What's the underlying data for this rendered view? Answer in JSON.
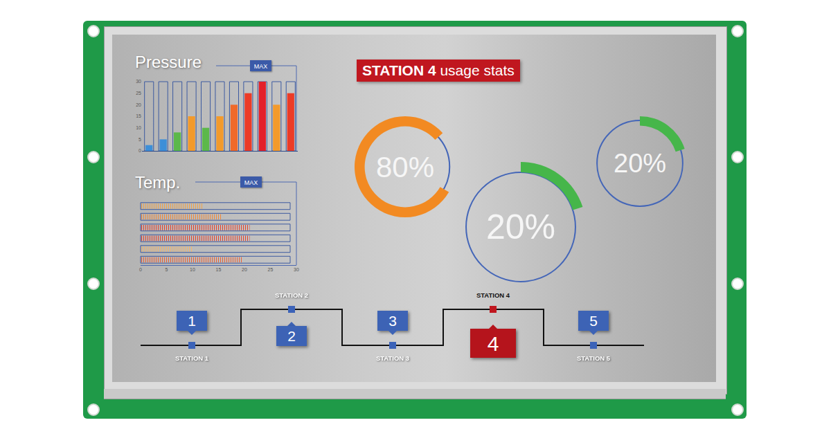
{
  "header": {
    "title_bold": "STATION 4",
    "title": "usage stats"
  },
  "chart_data": [
    {
      "type": "bar",
      "title": "Pressure",
      "annotation": "MAX",
      "categories": [
        null,
        null,
        null,
        null,
        null,
        null,
        null,
        null,
        null,
        null,
        null
      ],
      "values": [
        2.5,
        5,
        8,
        15,
        10,
        15,
        20,
        25,
        30,
        20,
        25
      ],
      "colors": [
        "#3d8fd8",
        "#3d8fd8",
        "#5cb84a",
        "#f39a2b",
        "#5cb84a",
        "#f39a2b",
        "#f06a2a",
        "#ec3b27",
        "#e3202a",
        "#f39a2b",
        "#ec3b27"
      ],
      "ylim": [
        0,
        30
      ],
      "yticks": [
        0,
        5,
        10,
        15,
        20,
        25,
        30
      ],
      "tick_labels": "y"
    },
    {
      "type": "bar",
      "orientation": "horizontal",
      "title": "Temp.",
      "annotation": "MAX",
      "categories": [
        null,
        null,
        null,
        null,
        null,
        null
      ],
      "values": [
        12,
        15.5,
        21,
        21,
        10,
        19.5
      ],
      "colors": [
        "#f0a24a",
        "#f0883a",
        "#e4412e",
        "#e4412e",
        "#f3b56a",
        "#ec6035"
      ],
      "xlim": [
        0,
        30
      ],
      "xticks": [
        0,
        5,
        10,
        15,
        20,
        25,
        30
      ],
      "tick_labels": "x"
    },
    {
      "type": "donut",
      "values": [
        80
      ],
      "value_labels": [
        "80%"
      ],
      "color": "#f28a22"
    },
    {
      "type": "donut",
      "values": [
        20
      ],
      "value_labels": [
        "20%"
      ],
      "color": "#46b64a"
    },
    {
      "type": "donut",
      "values": [
        20
      ],
      "value_labels": [
        "20%"
      ],
      "color": "#46b64a"
    }
  ],
  "stations": [
    {
      "number": "1",
      "label": "STATION 1"
    },
    {
      "number": "2",
      "label": "STATION 2"
    },
    {
      "number": "3",
      "label": "STATION 3"
    },
    {
      "number": "4",
      "label": "STATION 4",
      "active": true
    },
    {
      "number": "5",
      "label": "STATION 5"
    }
  ]
}
